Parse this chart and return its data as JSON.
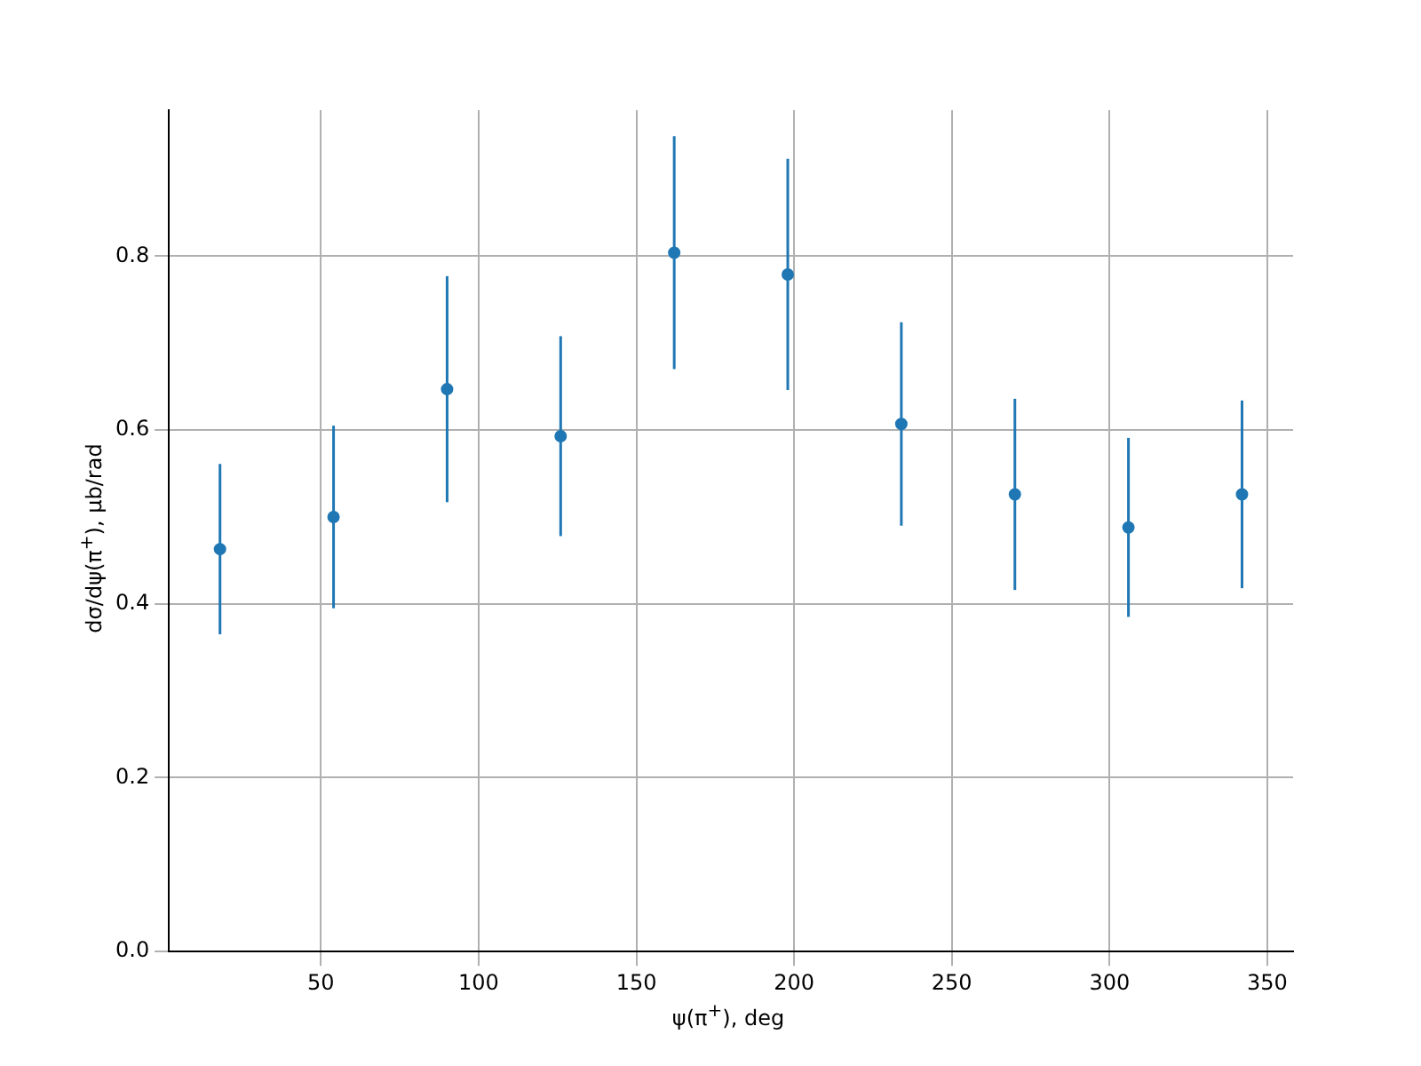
{
  "chart_data": {
    "type": "scatter",
    "xlabel": "ψ(π$^{+}$), deg",
    "ylabel": "dσ/dψ(π$^{+}$), μb/rad",
    "x": [
      18,
      54,
      90,
      126,
      162,
      198,
      234,
      270,
      306,
      342
    ],
    "values": [
      0.463,
      0.5,
      0.647,
      0.593,
      0.804,
      0.779,
      0.607,
      0.526,
      0.488,
      0.526
    ],
    "errors": [
      0.098,
      0.105,
      0.13,
      0.115,
      0.134,
      0.133,
      0.117,
      0.11,
      0.103,
      0.108
    ],
    "color": "#1f77b4",
    "marker": "circle",
    "grid": true,
    "legend": false,
    "xlim": [
      1.8,
      358.2
    ],
    "xticks": [
      50,
      100,
      150,
      200,
      250,
      300,
      350
    ],
    "ylim": [
      0,
      0.968
    ],
    "yticks": [
      {
        "value": 0,
        "label": "0.0"
      },
      {
        "value": 0.2,
        "label": "0.2"
      },
      {
        "value": 0.4,
        "label": "0.4"
      },
      {
        "value": 0.6,
        "label": "0.6"
      },
      {
        "value": 0.8,
        "label": "0.8"
      }
    ]
  }
}
